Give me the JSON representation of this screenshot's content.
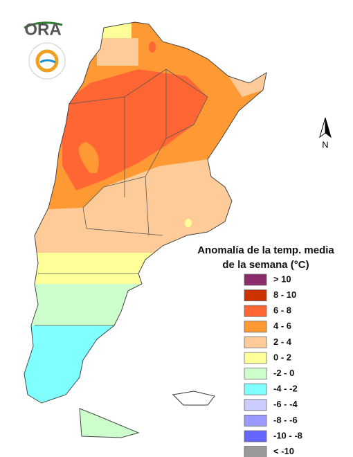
{
  "logo": {
    "text": "ORA"
  },
  "north_label": "N",
  "legend": {
    "title_lines": [
      "Anomalía de la temp. media",
      "de la semana (°C)"
    ],
    "items": [
      {
        "label": "> 10",
        "color": "#8b2d6b"
      },
      {
        "label": "8 - 10",
        "color": "#cc3300"
      },
      {
        "label": "6 - 8",
        "color": "#ff6633"
      },
      {
        "label": "4 - 6",
        "color": "#ff9933"
      },
      {
        "label": "2 - 4",
        "color": "#ffcc99"
      },
      {
        "label": "0 - 2",
        "color": "#ffff99"
      },
      {
        "label": "-2 - 0",
        "color": "#ccffcc"
      },
      {
        "label": "-4 - -2",
        "color": "#80ffff"
      },
      {
        "label": "-6 - -4",
        "color": "#ccccff"
      },
      {
        "label": "-8 - -6",
        "color": "#9999ff"
      },
      {
        "label": "-10 - -8",
        "color": "#6666ff"
      },
      {
        "label": "< -10",
        "color": "#999999"
      }
    ]
  }
}
